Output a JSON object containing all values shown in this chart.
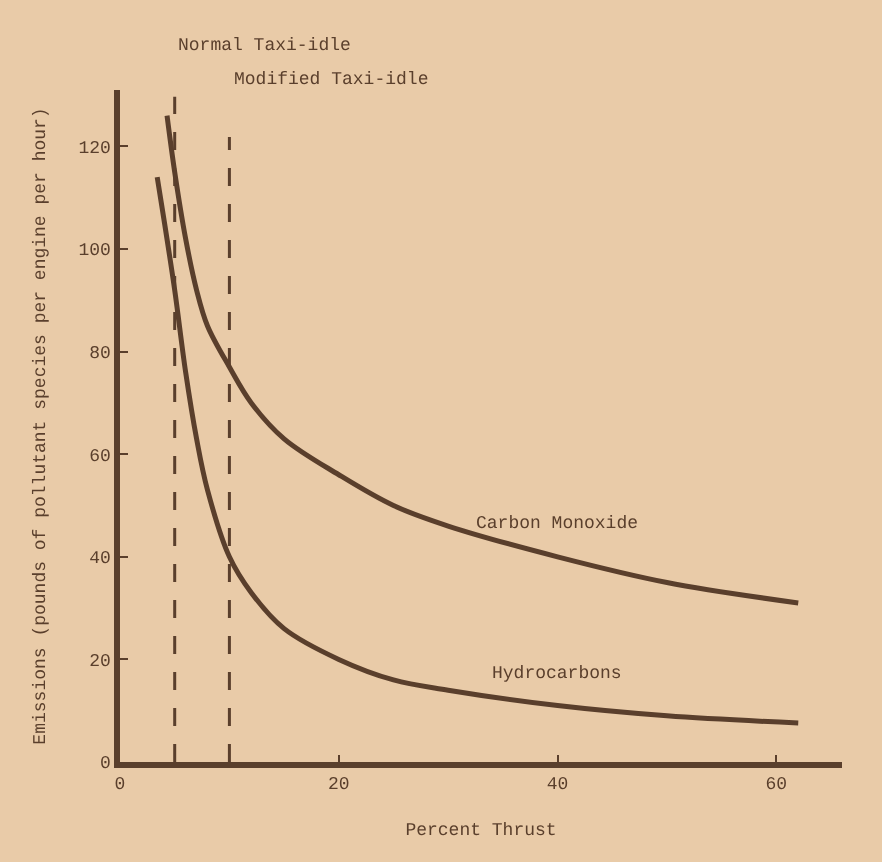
{
  "chart_data": {
    "type": "line",
    "xlabel": "Percent Thrust",
    "ylabel": "Emissions (pounds of pollutant species per engine per hour)",
    "series": [
      {
        "name": "Carbon Monoxide",
        "color": "#5a3f2c",
        "x": [
          4.3,
          5,
          6,
          7,
          8,
          10,
          12,
          15,
          20,
          25,
          30,
          40,
          50,
          62
        ],
        "values": [
          126,
          115,
          102,
          92,
          85,
          77,
          70,
          63,
          56,
          50,
          46,
          40,
          35,
          31
        ]
      },
      {
        "name": "Hydrocarbons",
        "color": "#5a3f2c",
        "x": [
          3.4,
          4,
          5,
          6,
          7,
          8,
          10,
          12,
          15,
          20,
          25,
          30,
          40,
          50,
          62
        ],
        "values": [
          114,
          106,
          92,
          76,
          63,
          53,
          40,
          33,
          26,
          20,
          16,
          14,
          11,
          9,
          7.6
        ]
      }
    ],
    "ref_lines": [
      {
        "axis": "x",
        "value": 5,
        "label": "Normal Taxi-idle",
        "line_style": "dashed"
      },
      {
        "axis": "x",
        "value": 10,
        "label": "Modified Taxi-idle",
        "line_style": "dashed"
      }
    ],
    "xlim": [
      0,
      66
    ],
    "xticks": [
      0,
      20,
      40,
      60
    ],
    "ylim": [
      0,
      131
    ],
    "yticks": [
      0,
      20,
      40,
      60,
      80,
      100,
      120
    ],
    "grid": false,
    "legend": false,
    "marker": "none",
    "line_style": "solid"
  }
}
